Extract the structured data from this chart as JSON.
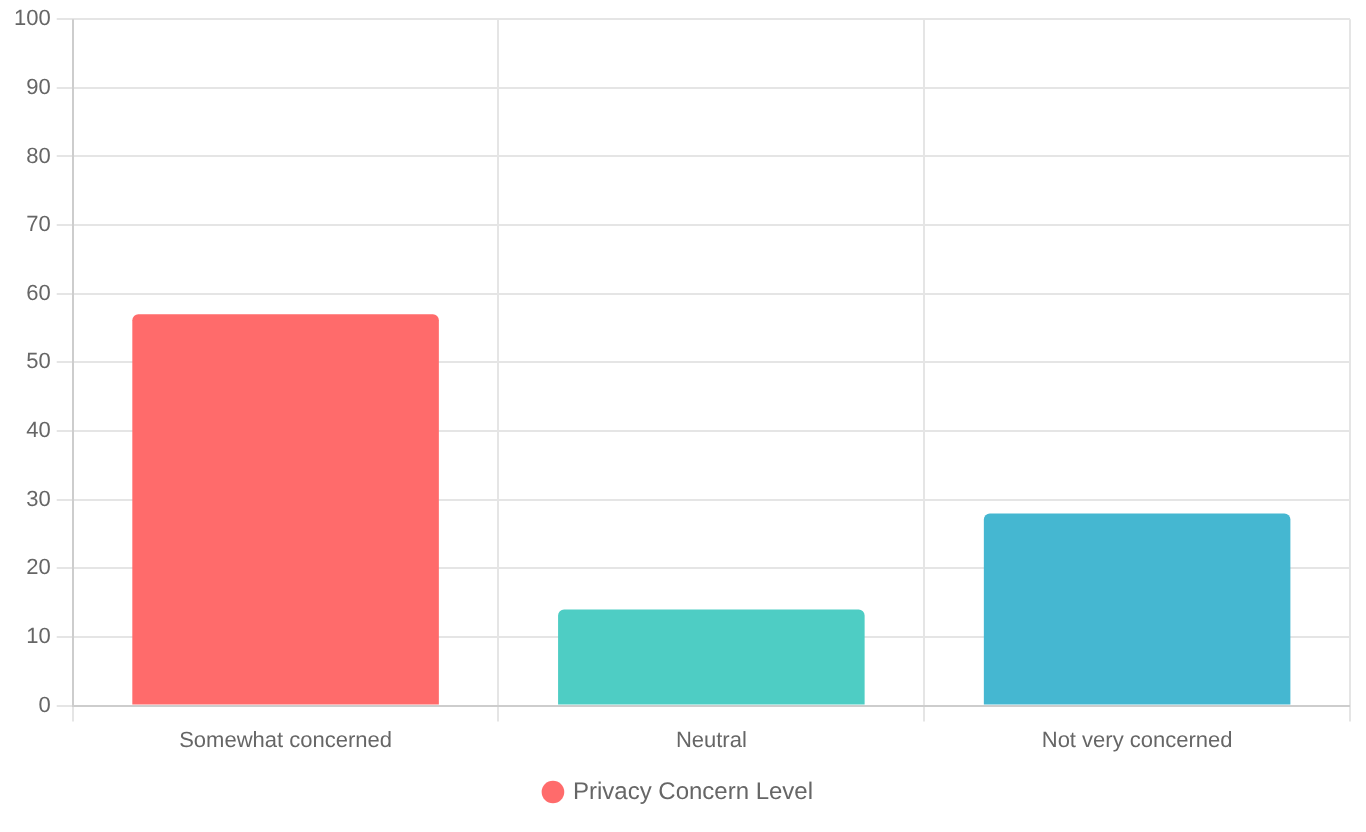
{
  "chart_data": {
    "type": "bar",
    "categories": [
      "Somewhat concerned",
      "Neutral",
      "Not very concerned"
    ],
    "series": [
      {
        "name": "Privacy Concern Level",
        "colors": [
          "#ff6b6b",
          "#4ecdc4",
          "#45b7d1"
        ],
        "values": [
          57,
          14,
          28
        ]
      }
    ],
    "ylim": [
      0,
      100
    ],
    "yticks": [
      0,
      10,
      20,
      30,
      40,
      50,
      60,
      70,
      80,
      90,
      100
    ],
    "grid": true,
    "legend": "bottom"
  }
}
